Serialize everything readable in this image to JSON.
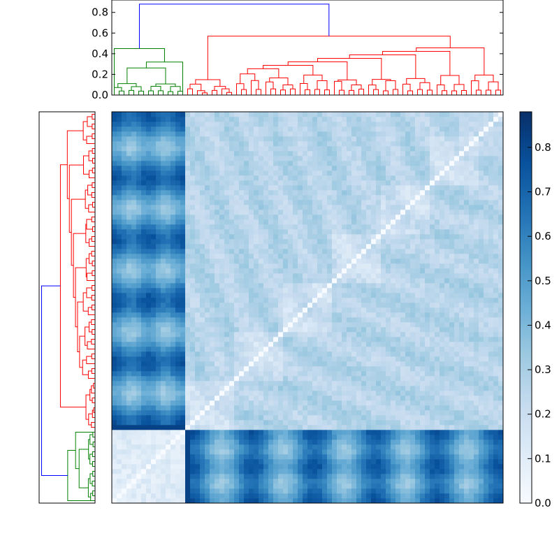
{
  "chart_data": [
    {
      "type": "dendrogram",
      "position": "top",
      "y_ticks": [
        "0.0",
        "0.2",
        "0.4",
        "0.6",
        "0.8"
      ],
      "y_tick_values": [
        0,
        0.2,
        0.4,
        0.6,
        0.8
      ],
      "ylim": [
        0,
        0.92
      ],
      "link_colors": [
        "blue",
        "green",
        "red"
      ],
      "root_height": 0.88,
      "green_cluster_height": 0.45,
      "red_cluster_height": 0.57
    },
    {
      "type": "dendrogram",
      "position": "left",
      "link_colors": [
        "blue",
        "green",
        "red"
      ],
      "note_labels": []
    },
    {
      "type": "heatmap",
      "rows": 80,
      "cols": 80,
      "colormap": "Blues",
      "clim": [
        0,
        0.88
      ],
      "cluster_boundary_index": 15,
      "diagonal_value": 0.0,
      "colorbar_ticks": [
        "0.0",
        "0.1",
        "0.2",
        "0.3",
        "0.4",
        "0.5",
        "0.6",
        "0.7",
        "0.8"
      ],
      "colorbar_tick_values": [
        0,
        0.1,
        0.2,
        0.3,
        0.4,
        0.5,
        0.6,
        0.7,
        0.8
      ]
    }
  ],
  "colors": {
    "blue_link": "#0000ff",
    "green_link": "#008000",
    "red_link": "#ff0000",
    "cmap_low": "#f7fbff",
    "cmap_high": "#08306b"
  }
}
